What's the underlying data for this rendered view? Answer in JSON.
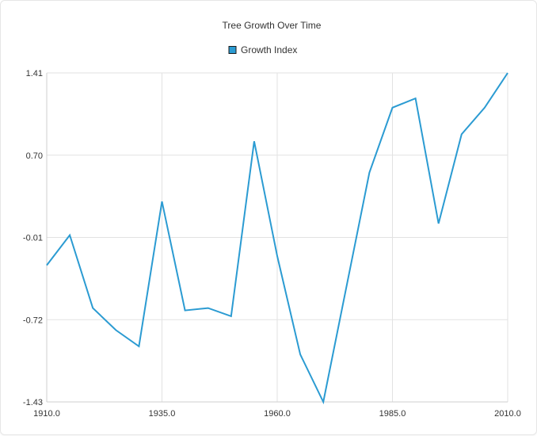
{
  "chart_data": {
    "type": "line",
    "title": "Tree Growth Over Time",
    "xlabel": "",
    "ylabel": "",
    "xlim": [
      1910,
      2010
    ],
    "ylim": [
      -1.43,
      1.41
    ],
    "x_ticks": [
      1910,
      1935,
      1960,
      1985,
      2010
    ],
    "x_tick_labels": [
      "1910.0",
      "1935.0",
      "1960.0",
      "1985.0",
      "2010.0"
    ],
    "y_ticks": [
      1.41,
      0.7,
      -0.01,
      -0.72,
      -1.43
    ],
    "y_tick_labels": [
      "1.41",
      "0.70",
      "-0.01",
      "-0.72",
      "-1.43"
    ],
    "grid": true,
    "legend_position": "top-center",
    "series": [
      {
        "name": "Growth Index",
        "color": "#2b9bd2",
        "x": [
          1910,
          1915,
          1920,
          1925,
          1930,
          1935,
          1940,
          1945,
          1950,
          1955,
          1960,
          1965,
          1970,
          1975,
          1980,
          1985,
          1990,
          1995,
          2000,
          2005,
          2010
        ],
        "values": [
          -0.25,
          0.01,
          -0.62,
          -0.81,
          -0.95,
          0.3,
          -0.64,
          -0.62,
          -0.69,
          0.82,
          -0.17,
          -1.02,
          -1.43,
          -0.44,
          0.55,
          1.11,
          1.19,
          0.11,
          0.88,
          1.11,
          1.41
        ]
      }
    ]
  }
}
